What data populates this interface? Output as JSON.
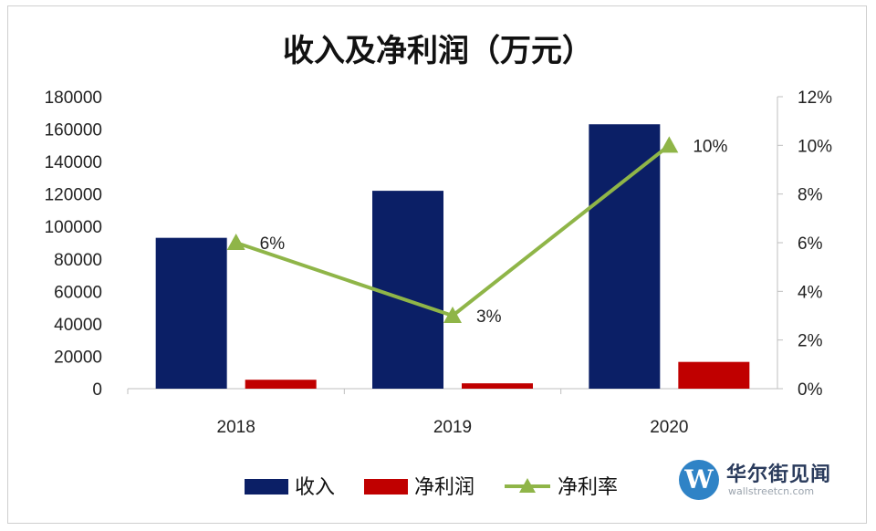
{
  "chart_data": {
    "type": "bar",
    "title": "收入及净利润（万元）",
    "categories": [
      "2018",
      "2019",
      "2020"
    ],
    "series": [
      {
        "name": "收入",
        "kind": "bar",
        "axis": "left",
        "color": "#0b1f66",
        "values": [
          93000,
          122000,
          163000
        ]
      },
      {
        "name": "净利润",
        "kind": "bar",
        "axis": "left",
        "color": "#c00000",
        "values": [
          5500,
          3300,
          16500
        ]
      },
      {
        "name": "净利率",
        "kind": "line",
        "axis": "right",
        "color": "#8fb548",
        "marker": "triangle",
        "values": [
          0.06,
          0.03,
          0.1
        ],
        "labels": [
          "6%",
          "3%",
          "10%"
        ]
      }
    ],
    "left_axis": {
      "ylim": [
        0,
        180000
      ],
      "ticks": [
        "0",
        "20000",
        "40000",
        "60000",
        "80000",
        "100000",
        "120000",
        "140000",
        "160000",
        "180000"
      ]
    },
    "right_axis": {
      "ylim": [
        0,
        0.12
      ],
      "ticks": [
        "0%",
        "2%",
        "4%",
        "6%",
        "8%",
        "10%",
        "12%"
      ]
    },
    "legend_position": "bottom",
    "grid": false
  },
  "watermark": {
    "logo_letter": "W",
    "name": "华尔街见闻",
    "url": "wallstreetcn.com"
  }
}
